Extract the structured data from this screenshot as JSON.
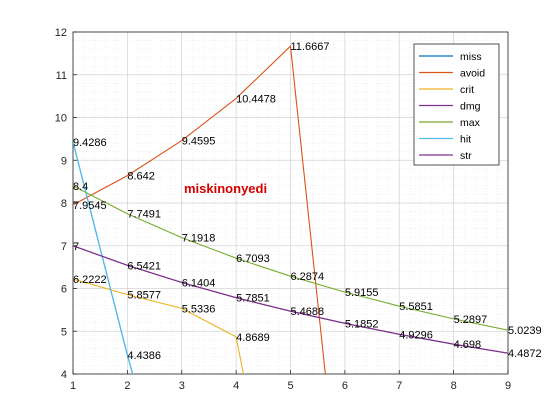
{
  "chart_data": {
    "type": "line",
    "title": "",
    "xlabel": "",
    "ylabel": "",
    "xlim": [
      1,
      9
    ],
    "ylim": [
      4,
      12
    ],
    "xticks": [
      1,
      2,
      3,
      4,
      5,
      6,
      7,
      8,
      9
    ],
    "yticks": [
      4,
      5,
      6,
      7,
      8,
      9,
      10,
      11,
      12
    ],
    "grid": "major and minor (dotted)",
    "legend_location": "top-right",
    "annotation": "miskinonyedi",
    "series": [
      {
        "name": "miss",
        "color": "#0072BD",
        "points": [
          [
            1,
            9.4286
          ],
          [
            2,
            4.4386
          ],
          [
            2.12,
            3.9
          ]
        ],
        "labels": [
          [
            1,
            9.4286,
            "9.4286"
          ],
          [
            2,
            4.4386,
            "4.4386"
          ]
        ]
      },
      {
        "name": "avoid",
        "color": "#D95319",
        "points": [
          [
            1,
            7.9545
          ],
          [
            2,
            8.642
          ],
          [
            3,
            9.4595
          ],
          [
            4,
            10.4478
          ],
          [
            5,
            11.6667
          ],
          [
            5.65,
            3.9
          ]
        ],
        "labels": [
          [
            1,
            7.9545,
            "7.9545"
          ],
          [
            2,
            8.642,
            "8.642"
          ],
          [
            3,
            9.4595,
            "9.4595"
          ],
          [
            4,
            10.4478,
            "10.4478"
          ],
          [
            5,
            11.6667,
            "11.6667"
          ]
        ]
      },
      {
        "name": "crit",
        "color": "#EDB120",
        "points": [
          [
            1,
            6.2222
          ],
          [
            2,
            5.8577
          ],
          [
            3,
            5.5336
          ],
          [
            4,
            4.8689
          ],
          [
            4.15,
            3.9
          ]
        ],
        "labels": [
          [
            1,
            6.2222,
            "6.2222"
          ],
          [
            2,
            5.8577,
            "5.8577"
          ],
          [
            3,
            5.5336,
            "5.5336"
          ],
          [
            4,
            4.8689,
            "4.8689"
          ]
        ]
      },
      {
        "name": "dmg",
        "color": "#7E2F8E",
        "points": [
          [
            1,
            7
          ],
          [
            2,
            6.5421
          ],
          [
            3,
            6.1404
          ],
          [
            4,
            5.7851
          ],
          [
            5,
            5.4688
          ],
          [
            6,
            5.1852
          ],
          [
            7,
            4.9296
          ],
          [
            8,
            4.698
          ],
          [
            9,
            4.4872
          ]
        ],
        "labels": [
          [
            1,
            7,
            "7"
          ],
          [
            2,
            6.5421,
            "6.5421"
          ],
          [
            3,
            6.1404,
            "6.1404"
          ],
          [
            4,
            5.7851,
            "5.7851"
          ],
          [
            5,
            5.4688,
            "5.4688"
          ],
          [
            6,
            5.1852,
            "5.1852"
          ],
          [
            7,
            4.9296,
            "4.9296"
          ],
          [
            8,
            4.698,
            "4.698"
          ],
          [
            9,
            4.4872,
            "4.4872"
          ]
        ]
      },
      {
        "name": "max",
        "color": "#77AC30",
        "points": [
          [
            1,
            8.4
          ],
          [
            2,
            7.7491
          ],
          [
            3,
            7.1918
          ],
          [
            4,
            6.7093
          ],
          [
            5,
            6.2874
          ],
          [
            6,
            5.9155
          ],
          [
            7,
            5.5851
          ],
          [
            8,
            5.2897
          ],
          [
            9,
            5.0239
          ]
        ],
        "labels": [
          [
            1,
            8.4,
            "8.4"
          ],
          [
            2,
            7.7491,
            "7.7491"
          ],
          [
            3,
            7.1918,
            "7.1918"
          ],
          [
            4,
            6.7093,
            "6.7093"
          ],
          [
            5,
            6.2874,
            "6.2874"
          ],
          [
            6,
            5.9155,
            "5.9155"
          ],
          [
            7,
            5.5851,
            "5.5851"
          ],
          [
            8,
            5.2897,
            "5.2897"
          ],
          [
            9,
            5.0239,
            "5.0239"
          ]
        ]
      },
      {
        "name": "hit",
        "color": "#4DBEEE",
        "points": [
          [
            1,
            9.4286
          ],
          [
            2,
            4.4386
          ],
          [
            2.12,
            3.9
          ]
        ],
        "labels": []
      },
      {
        "name": "str",
        "color": "#7E2F8E",
        "points": [
          [
            1,
            7
          ],
          [
            2,
            6.5421
          ],
          [
            3,
            6.1404
          ],
          [
            4,
            5.7851
          ],
          [
            5,
            5.4688
          ],
          [
            6,
            5.1852
          ],
          [
            7,
            4.9296
          ],
          [
            8,
            4.698
          ],
          [
            9,
            4.4872
          ]
        ],
        "labels": []
      }
    ]
  }
}
